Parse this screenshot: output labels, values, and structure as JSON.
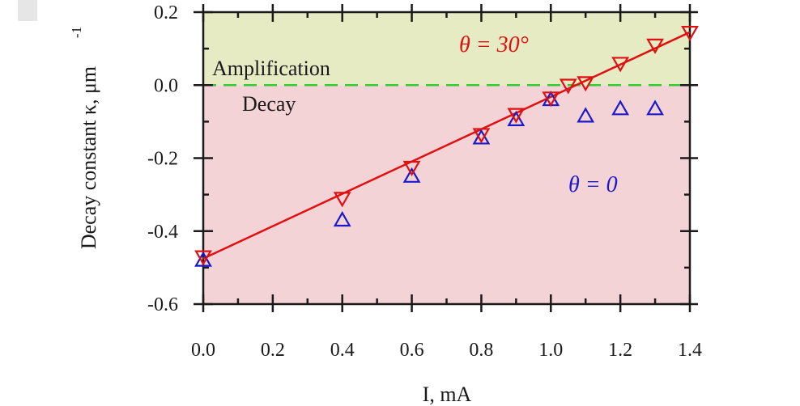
{
  "chart_data": {
    "type": "scatter",
    "title": "",
    "xlabel": "I, mA",
    "ylabel": "Decay constant κ, μm",
    "ylabel_superscript": "-1",
    "xlim": [
      0,
      1.4
    ],
    "ylim": [
      -0.6,
      0.2
    ],
    "x_ticks": [
      0.0,
      0.2,
      0.4,
      0.6,
      0.8,
      1.0,
      1.2,
      1.4
    ],
    "x_tick_labels": [
      "0.0",
      "0.2",
      "0.4",
      "0.6",
      "0.8",
      "1.0",
      "1.2",
      "1.4"
    ],
    "y_ticks": [
      0.2,
      0.0,
      -0.2,
      -0.4,
      -0.6
    ],
    "y_tick_labels": [
      "0.2",
      "0.0",
      "-0.2",
      "-0.4",
      "-0.6"
    ],
    "regions": [
      {
        "name": "Amplification",
        "from": 0.0,
        "to": 0.2,
        "color": "#e6ebc4"
      },
      {
        "name": "Decay",
        "from": -0.6,
        "to": 0.0,
        "color": "#f4d3d6"
      }
    ],
    "zero_line_color": "#33cc33",
    "series": [
      {
        "name": "θ = 0",
        "marker": "triangle-up",
        "color": "#1a1acc",
        "x": [
          0.0,
          0.4,
          0.6,
          0.8,
          0.9,
          1.0,
          1.1,
          1.2,
          1.3
        ],
        "y": [
          -0.48,
          -0.37,
          -0.25,
          -0.145,
          -0.095,
          -0.04,
          -0.085,
          -0.065,
          -0.065
        ]
      },
      {
        "name": "θ = 30°",
        "marker": "triangle-down",
        "color": "#e01010",
        "x": [
          0.0,
          0.4,
          0.6,
          0.8,
          0.9,
          1.0,
          1.05,
          1.1,
          1.2,
          1.3,
          1.4
        ],
        "y": [
          -0.47,
          -0.31,
          -0.225,
          -0.135,
          -0.08,
          -0.035,
          0.0,
          0.007,
          0.06,
          0.11,
          0.145
        ]
      }
    ],
    "fit_line": {
      "series": "θ = 30°",
      "color": "#e01010",
      "x": [
        0.0,
        1.4
      ],
      "y": [
        -0.475,
        0.145
      ]
    },
    "annotations": [
      {
        "text": "θ = 30°",
        "color": "#e01010"
      },
      {
        "text": "θ = 0",
        "color": "#1a1acc"
      },
      {
        "text": "Amplification",
        "color": "#1a1a1a"
      },
      {
        "text": "Decay",
        "color": "#1a1a1a"
      }
    ]
  }
}
